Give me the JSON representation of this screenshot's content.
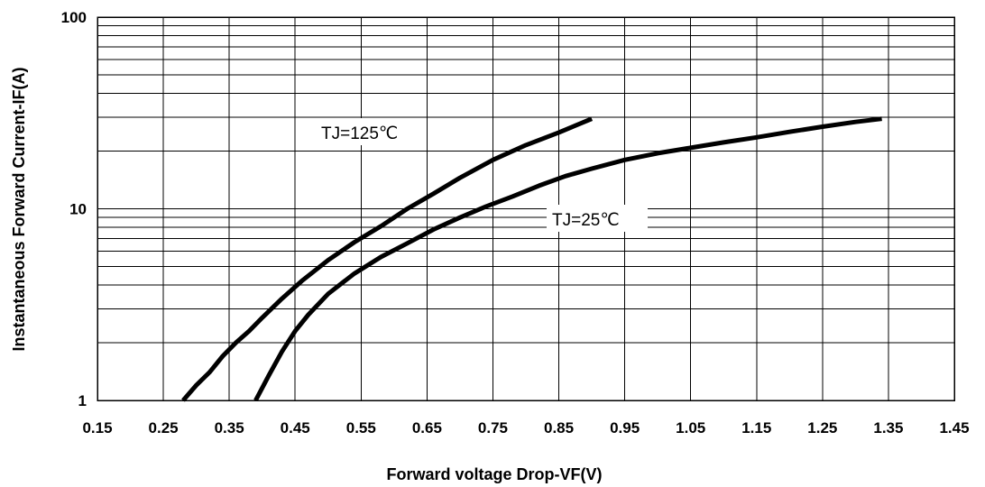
{
  "chart_data": {
    "type": "line",
    "xlabel": "Forward voltage Drop-VF(V)",
    "ylabel": "Instantaneous Forward Current-IF(A)",
    "x_scale": "linear",
    "y_scale": "log",
    "xlim": [
      0.15,
      1.45
    ],
    "ylim": [
      1,
      100
    ],
    "x_ticks": [
      "0.15",
      "0.25",
      "0.35",
      "0.45",
      "0.55",
      "0.65",
      "0.75",
      "0.85",
      "0.95",
      "1.05",
      "1.15",
      "1.25",
      "1.35",
      "1.45"
    ],
    "y_ticks": [
      "1",
      "10",
      "100"
    ],
    "grid": true,
    "series": [
      {
        "name": "TJ=125℃",
        "color": "#000000",
        "x": [
          0.28,
          0.3,
          0.32,
          0.34,
          0.36,
          0.38,
          0.4,
          0.43,
          0.46,
          0.5,
          0.54,
          0.58,
          0.62,
          0.66,
          0.7,
          0.75,
          0.8,
          0.85,
          0.9
        ],
        "y": [
          1.0,
          1.2,
          1.4,
          1.7,
          2.0,
          2.3,
          2.7,
          3.4,
          4.2,
          5.4,
          6.7,
          8.1,
          10.0,
          12.0,
          14.5,
          18.0,
          21.5,
          25.0,
          29.5
        ]
      },
      {
        "name": "TJ=25℃",
        "color": "#000000",
        "x": [
          0.39,
          0.41,
          0.43,
          0.45,
          0.47,
          0.5,
          0.54,
          0.58,
          0.62,
          0.66,
          0.7,
          0.74,
          0.78,
          0.82,
          0.86,
          0.9,
          0.95,
          1.0,
          1.05,
          1.1,
          1.15,
          1.2,
          1.25,
          1.3,
          1.34
        ],
        "y": [
          1.0,
          1.35,
          1.8,
          2.3,
          2.8,
          3.6,
          4.6,
          5.6,
          6.6,
          7.8,
          9.0,
          10.3,
          11.6,
          13.2,
          14.8,
          16.2,
          18.0,
          19.5,
          20.8,
          22.2,
          23.6,
          25.2,
          26.8,
          28.4,
          29.5
        ]
      }
    ]
  }
}
